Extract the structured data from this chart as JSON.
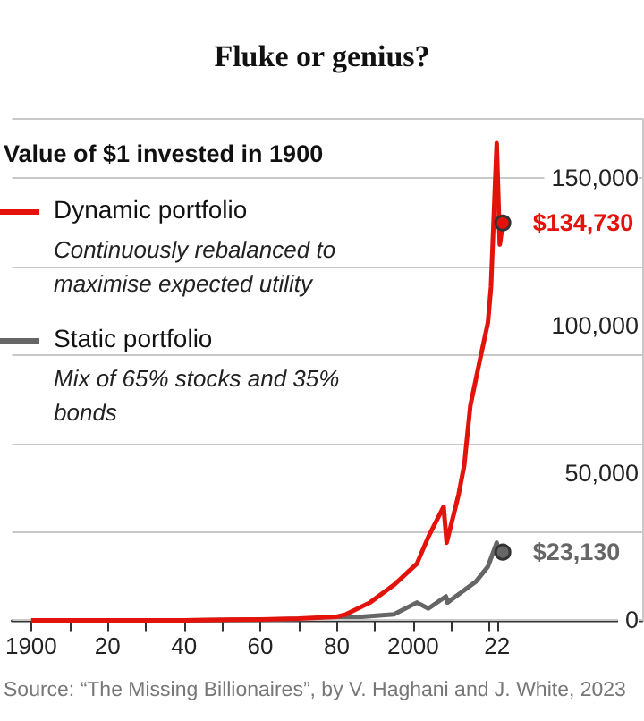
{
  "chart_data": {
    "type": "line",
    "title": "Fluke or genius?",
    "subtitle": "Value of $1 invested in 1900",
    "xlim": [
      1895,
      2060
    ],
    "xticks": [
      {
        "value": 1900,
        "label": "1900"
      },
      {
        "value": 1910,
        "label": null
      },
      {
        "value": 1920,
        "label": "20"
      },
      {
        "value": 1930,
        "label": null
      },
      {
        "value": 1940,
        "label": "40"
      },
      {
        "value": 1950,
        "label": null
      },
      {
        "value": 1960,
        "label": "60"
      },
      {
        "value": 1970,
        "label": null
      },
      {
        "value": 1980,
        "label": "80"
      },
      {
        "value": 1990,
        "label": null
      },
      {
        "value": 2000,
        "label": "2000"
      },
      {
        "value": 2010,
        "label": null
      },
      {
        "value": 2020,
        "label": null
      },
      {
        "value": 2022,
        "label": "22"
      }
    ],
    "ylim": [
      0,
      170000
    ],
    "yticks": [
      0,
      {
        "value": 50000,
        "label": "50,000"
      },
      {
        "value": 100000,
        "label": "100,000"
      },
      {
        "value": 150000,
        "label": "150,000"
      }
    ],
    "grid": "y",
    "legend": "top left",
    "series": [
      {
        "name": "Dynamic portfolio",
        "color": "#e3120b",
        "x": [
          1900,
          1920,
          1940,
          1960,
          1970,
          1980,
          1982.4,
          1988.7,
          1995,
          2001,
          2004,
          2008,
          2008.8,
          2011.9,
          2013.4,
          2015,
          2017.3,
          2019.6,
          2020.4,
          2021.9,
          2022.7,
          2023.5
        ],
        "values": [
          0,
          0,
          0,
          300,
          600,
          1200,
          2000,
          6000,
          12000,
          19200,
          28300,
          38500,
          26300,
          42500,
          52600,
          72800,
          87000,
          101000,
          113000,
          161800,
          127400,
          134730
        ],
        "value_labels": [
          null,
          null,
          null,
          null,
          null,
          null,
          null,
          null,
          null,
          null,
          null,
          null,
          null,
          null,
          null,
          null,
          null,
          null,
          null,
          null,
          null,
          "$134,730"
        ]
      },
      {
        "name": "Static portfolio",
        "color": "#666666",
        "x": [
          1900,
          1920,
          1940,
          1960,
          1970,
          1980,
          1985,
          1995,
          2001,
          2004,
          2008.6,
          2009,
          2016.5,
          2019.6,
          2021.9,
          2022.7,
          2023.5
        ],
        "values": [
          0,
          0,
          0,
          200,
          400,
          800,
          1000,
          2000,
          6000,
          4000,
          8100,
          6000,
          13200,
          18200,
          26300,
          22300,
          23130
        ],
        "value_labels": [
          null,
          null,
          null,
          null,
          null,
          null,
          null,
          null,
          null,
          null,
          null,
          null,
          null,
          null,
          null,
          null,
          "$23,130"
        ]
      }
    ],
    "annotations": [
      "Continuously rebalanced to maximise expected utility",
      "Mix of 65% stocks and 35% bonds",
      "Source: “The Missing Billionaires”, by V. Haghani and J. White, 2023"
    ]
  }
}
